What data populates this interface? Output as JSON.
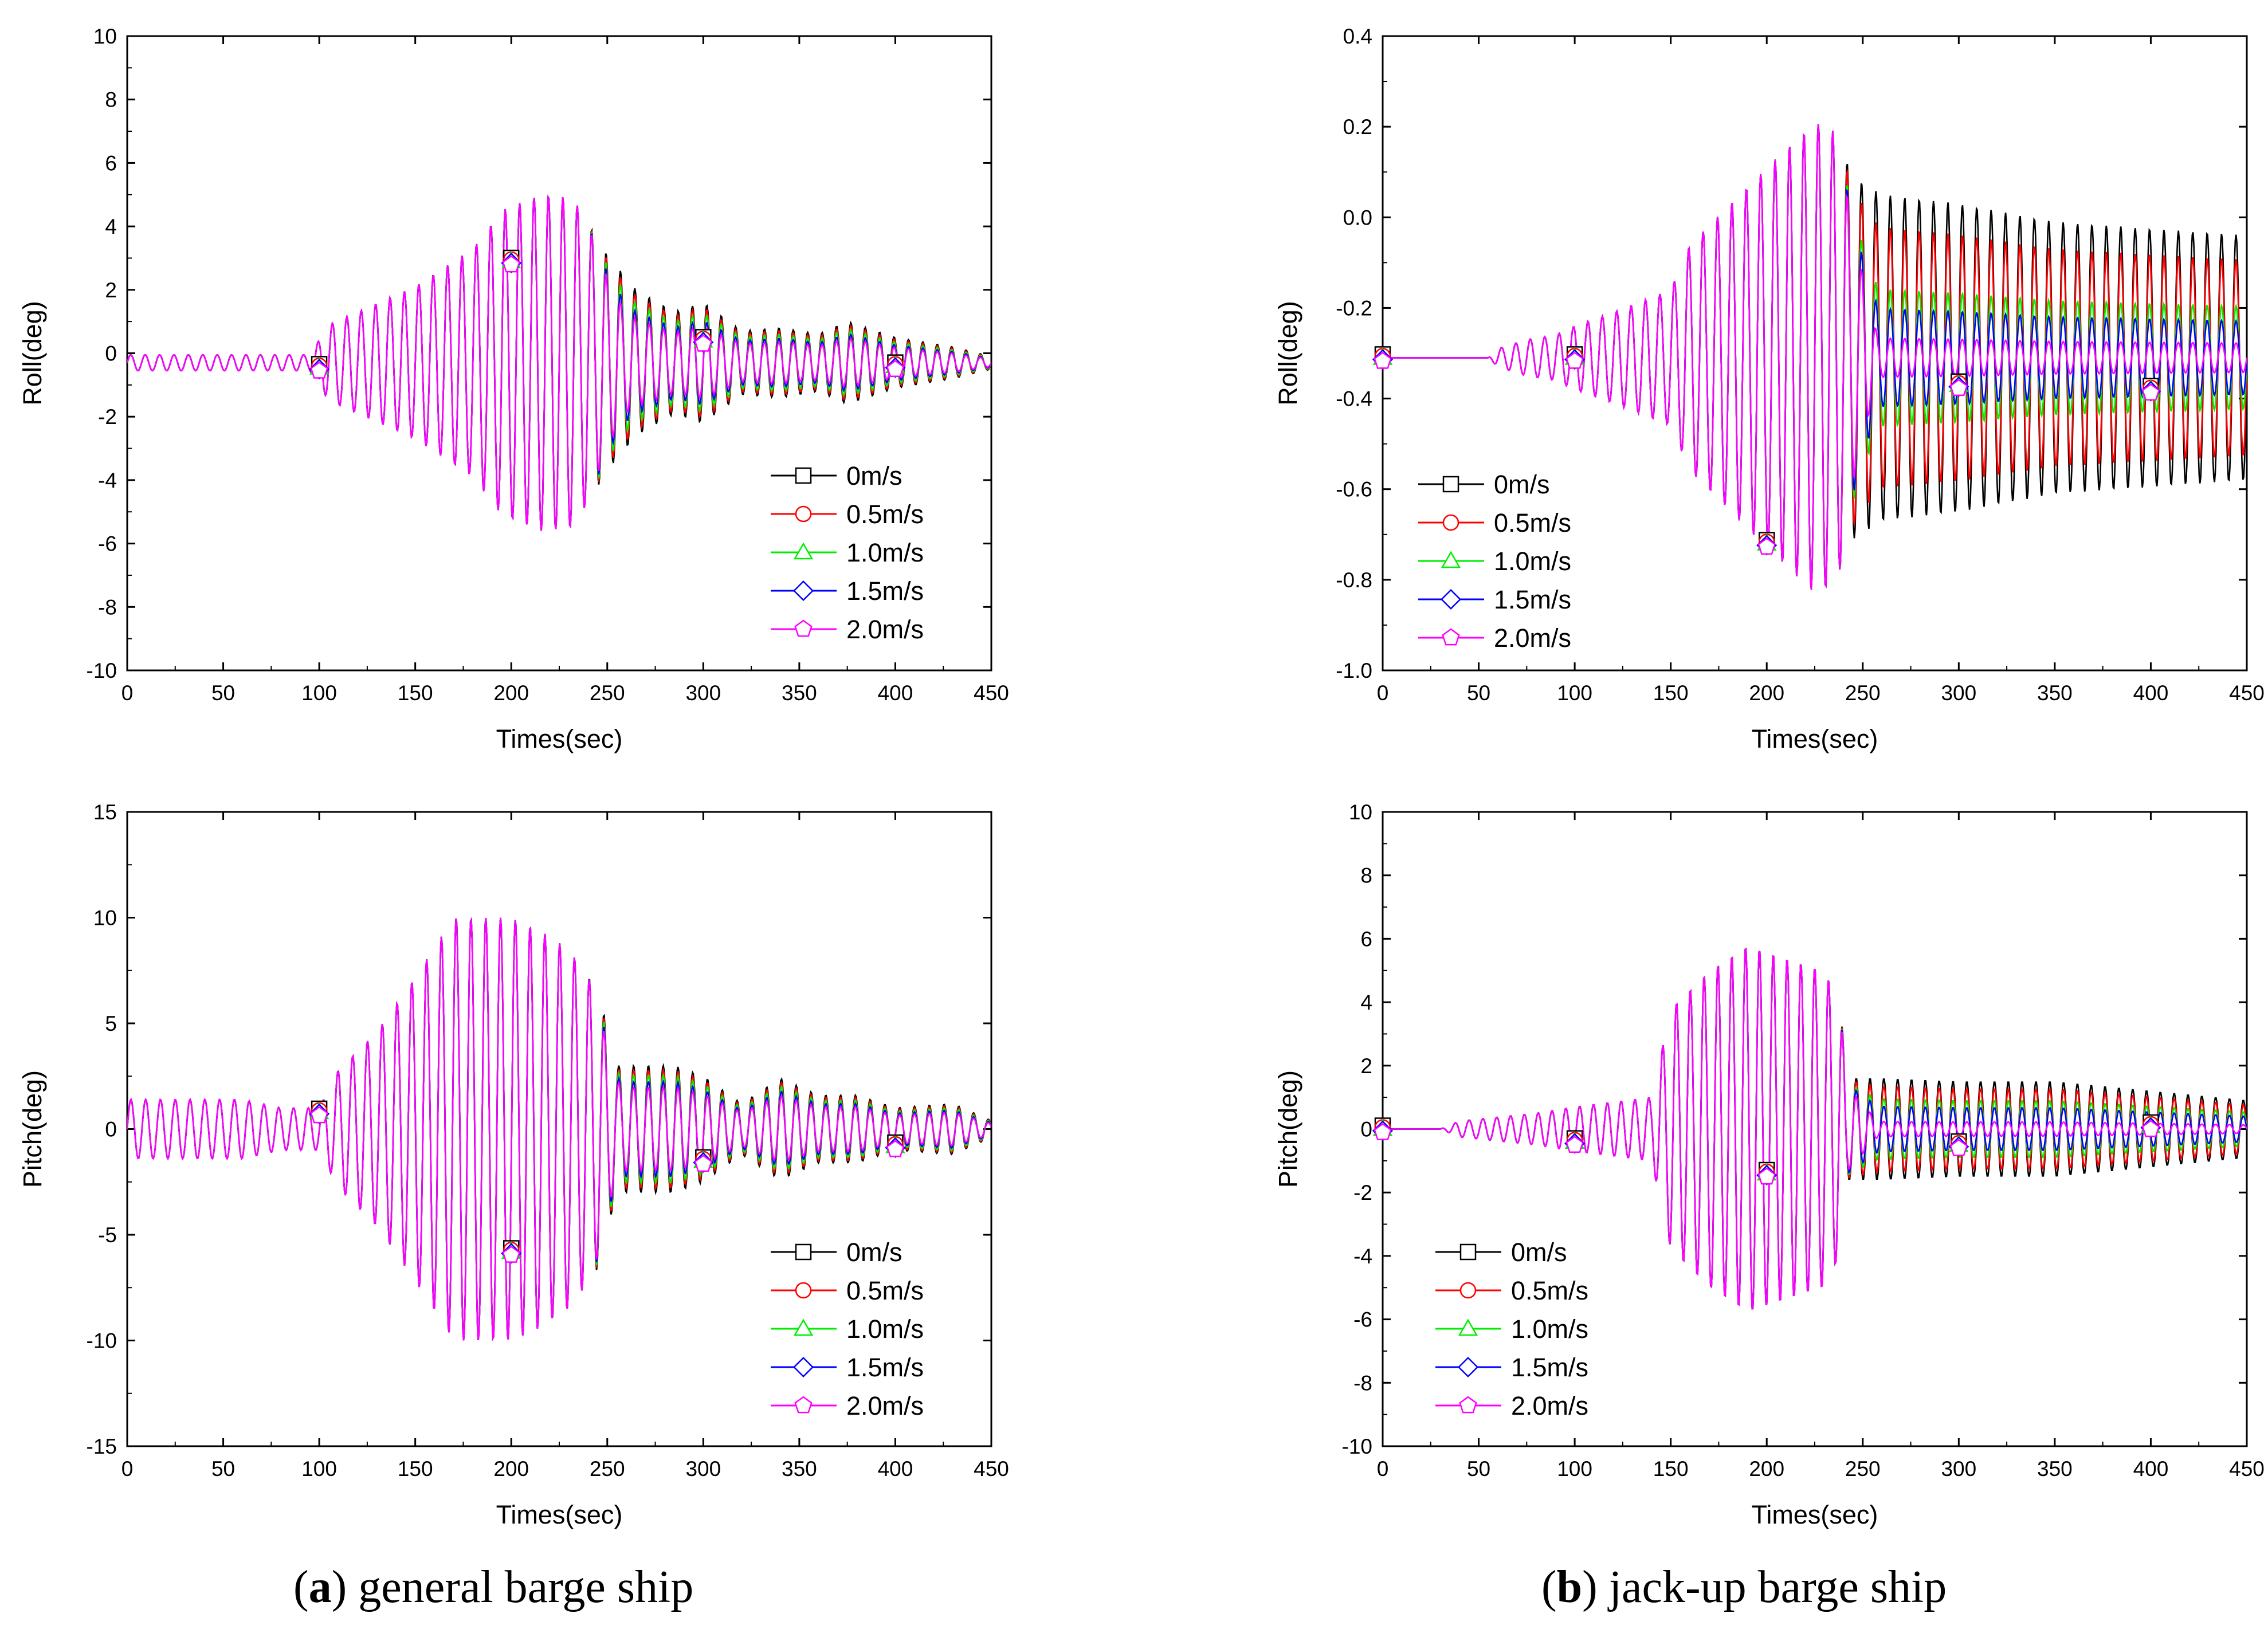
{
  "captions": {
    "a": {
      "letter": "a",
      "text": ") general barge ship"
    },
    "b": {
      "letter": "b",
      "text": ") jack-up barge ship"
    }
  },
  "series_styles": [
    {
      "name": "0m/s",
      "color": "#000000",
      "marker": "square"
    },
    {
      "name": "0.5m/s",
      "color": "#ff0000",
      "marker": "circle"
    },
    {
      "name": "1.0m/s",
      "color": "#00ee00",
      "marker": "triangle"
    },
    {
      "name": "1.5m/s",
      "color": "#0000ff",
      "marker": "diamond"
    },
    {
      "name": "2.0m/s",
      "color": "#ff00ff",
      "marker": "pentagon"
    }
  ],
  "chart_data": [
    {
      "id": "a-roll",
      "type": "line",
      "title": "",
      "xlabel": "Times(sec)",
      "ylabel": "Roll(deg)",
      "xlim": [
        0,
        450
      ],
      "ylim": [
        -10,
        10
      ],
      "xticks": [
        0,
        50,
        100,
        150,
        200,
        250,
        300,
        350,
        400,
        450
      ],
      "yticks": [
        -10,
        -8,
        -6,
        -4,
        -2,
        0,
        2,
        4,
        6,
        8,
        10
      ],
      "legend": [
        "0m/s",
        "0.5m/s",
        "1.0m/s",
        "1.5m/s",
        "2.0m/s"
      ],
      "legend_position": "bottom-right",
      "signal": {
        "period": 7.5,
        "offset": -0.3,
        "envelope": [
          [
            0,
            0.25
          ],
          [
            95,
            0.25
          ],
          [
            105,
            1.2
          ],
          [
            150,
            2.4
          ],
          [
            180,
            3.6
          ],
          [
            195,
            4.8
          ],
          [
            215,
            5.3
          ],
          [
            232,
            5.2
          ],
          [
            250,
            3.4
          ],
          [
            265,
            2.3
          ],
          [
            285,
            1.6
          ],
          [
            300,
            1.9
          ],
          [
            320,
            1.0
          ],
          [
            340,
            1.1
          ],
          [
            360,
            0.9
          ],
          [
            375,
            1.3
          ],
          [
            400,
            0.8
          ],
          [
            430,
            0.5
          ],
          [
            450,
            0.2
          ]
        ],
        "split": 240,
        "end_scale": [
          1.0,
          0.92,
          0.82,
          0.7,
          0.6
        ]
      },
      "marker_points": [
        [
          100,
          -0.45
        ],
        [
          200,
          2.9
        ],
        [
          300,
          0.4
        ],
        [
          400,
          -0.4
        ]
      ]
    },
    {
      "id": "b-roll",
      "type": "line",
      "title": "",
      "xlabel": "Times(sec)",
      "ylabel": "Roll(deg)",
      "xlim": [
        0,
        450
      ],
      "ylim": [
        -1.0,
        0.4
      ],
      "xticks": [
        0,
        50,
        100,
        150,
        200,
        250,
        300,
        350,
        400,
        450
      ],
      "yticks": [
        -1.0,
        -0.8,
        -0.6,
        -0.4,
        -0.2,
        0.0,
        0.2,
        0.4
      ],
      "legend": [
        "0m/s",
        "0.5m/s",
        "1.0m/s",
        "1.5m/s",
        "2.0m/s"
      ],
      "legend_position": "bottom-left",
      "signal": {
        "period": 7.5,
        "offset": -0.31,
        "envelope": [
          [
            0,
            0.0
          ],
          [
            55,
            0.0
          ],
          [
            60,
            0.02
          ],
          [
            75,
            0.04
          ],
          [
            90,
            0.05
          ],
          [
            100,
            0.07
          ],
          [
            120,
            0.1
          ],
          [
            150,
            0.15
          ],
          [
            160,
            0.25
          ],
          [
            200,
            0.42
          ],
          [
            225,
            0.52
          ],
          [
            235,
            0.5
          ],
          [
            245,
            0.4
          ],
          [
            260,
            0.36
          ],
          [
            300,
            0.34
          ],
          [
            350,
            0.3
          ],
          [
            450,
            0.27
          ]
        ],
        "split": 238,
        "end_scale": [
          1.0,
          0.8,
          0.42,
          0.3,
          0.12
        ]
      },
      "marker_points": [
        [
          0,
          -0.31
        ],
        [
          100,
          -0.31
        ],
        [
          200,
          -0.72
        ],
        [
          300,
          -0.37
        ],
        [
          400,
          -0.38
        ]
      ]
    },
    {
      "id": "a-pitch",
      "type": "line",
      "title": "",
      "xlabel": "Times(sec)",
      "ylabel": "Pitch(deg)",
      "xlim": [
        0,
        450
      ],
      "ylim": [
        -15,
        15
      ],
      "xticks": [
        0,
        50,
        100,
        150,
        200,
        250,
        300,
        350,
        400,
        450
      ],
      "yticks": [
        -15,
        -10,
        -5,
        0,
        5,
        10,
        15
      ],
      "legend": [
        "0m/s",
        "0.5m/s",
        "1.0m/s",
        "1.5m/s",
        "2.0m/s"
      ],
      "legend_position": "bottom-right",
      "signal": {
        "period": 7.7,
        "offset": 0,
        "envelope": [
          [
            0,
            1.4
          ],
          [
            60,
            1.4
          ],
          [
            80,
            1.0
          ],
          [
            100,
            1.0
          ],
          [
            110,
            2.8
          ],
          [
            130,
            4.6
          ],
          [
            150,
            7.2
          ],
          [
            170,
            10.0
          ],
          [
            200,
            10.0
          ],
          [
            215,
            9.4
          ],
          [
            230,
            8.5
          ],
          [
            245,
            6.6
          ],
          [
            255,
            3.0
          ],
          [
            270,
            3.0
          ],
          [
            285,
            3.0
          ],
          [
            300,
            2.5
          ],
          [
            320,
            1.2
          ],
          [
            340,
            2.4
          ],
          [
            360,
            1.6
          ],
          [
            380,
            1.6
          ],
          [
            400,
            1.0
          ],
          [
            430,
            1.2
          ],
          [
            450,
            0.4
          ]
        ],
        "split": 240,
        "end_scale": [
          1.0,
          0.93,
          0.85,
          0.75,
          0.66
        ]
      },
      "marker_points": [
        [
          100,
          0.8
        ],
        [
          200,
          -5.8
        ],
        [
          300,
          -1.5
        ],
        [
          400,
          -0.8
        ]
      ]
    },
    {
      "id": "b-pitch",
      "type": "line",
      "title": "",
      "xlabel": "Times(sec)",
      "ylabel": "Pitch(deg)",
      "xlim": [
        0,
        450
      ],
      "ylim": [
        -10,
        10
      ],
      "xticks": [
        0,
        50,
        100,
        150,
        200,
        250,
        300,
        350,
        400,
        450
      ],
      "yticks": [
        -10,
        -8,
        -6,
        -4,
        -2,
        0,
        2,
        4,
        6,
        8,
        10
      ],
      "legend": [
        "0m/s",
        "0.5m/s",
        "1.0m/s",
        "1.5m/s",
        "2.0m/s"
      ],
      "legend_position": "bottom-left",
      "signal": {
        "period": 7.2,
        "offset": 0,
        "envelope": [
          [
            0,
            0.0
          ],
          [
            30,
            0.0
          ],
          [
            40,
            0.25
          ],
          [
            80,
            0.5
          ],
          [
            100,
            0.7
          ],
          [
            140,
            1.0
          ],
          [
            150,
            3.8
          ],
          [
            170,
            5.0
          ],
          [
            190,
            5.8
          ],
          [
            205,
            5.5
          ],
          [
            230,
            5.0
          ],
          [
            238,
            4.0
          ],
          [
            242,
            1.6
          ],
          [
            260,
            1.6
          ],
          [
            300,
            1.5
          ],
          [
            350,
            1.5
          ],
          [
            400,
            1.2
          ],
          [
            450,
            0.9
          ]
        ],
        "split": 238,
        "end_scale": [
          1.0,
          0.85,
          0.6,
          0.45,
          0.15
        ]
      },
      "marker_points": [
        [
          0,
          0.0
        ],
        [
          100,
          -0.4
        ],
        [
          200,
          -1.4
        ],
        [
          300,
          -0.5
        ],
        [
          400,
          0.1
        ]
      ]
    }
  ]
}
